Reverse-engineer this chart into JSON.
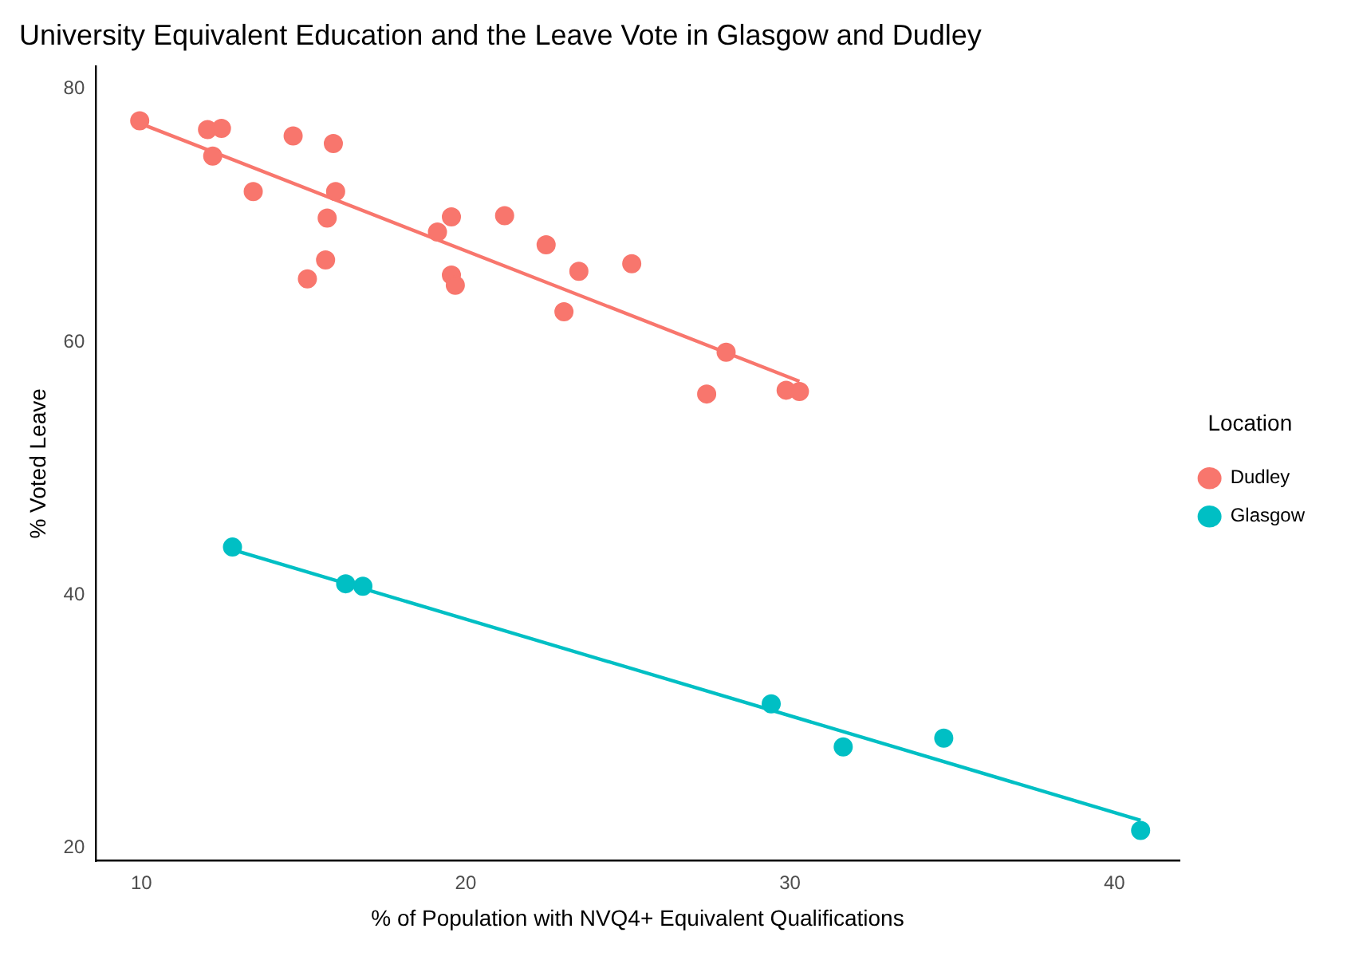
{
  "chart_data": {
    "type": "scatter",
    "title": "University Equivalent Education and the Leave Vote in Glasgow and Dudley",
    "xlabel": "% of Population with NVQ4+ Equivalent Qualifications",
    "ylabel": "% Voted Leave",
    "legend_title": "Location",
    "legend": "right",
    "grid": false,
    "marker": "circle",
    "xlim": [
      8.6,
      42
    ],
    "ylim": [
      19,
      81.8
    ],
    "xticks": [
      10,
      20,
      30,
      40
    ],
    "yticks": [
      20,
      40,
      60,
      80
    ],
    "series": [
      {
        "name": "Dudley",
        "color": "#f8766d",
        "x": [
          9.95,
          12.04,
          12.47,
          14.68,
          15.92,
          12.2,
          13.45,
          15.99,
          15.73,
          19.56,
          19.13,
          21.2,
          15.68,
          15.12,
          19.56,
          19.68,
          22.48,
          23.49,
          25.12,
          23.03,
          28.03,
          27.43,
          29.88,
          30.29
        ],
        "values": [
          77.5,
          76.8,
          76.9,
          76.3,
          75.7,
          74.7,
          71.9,
          71.9,
          69.8,
          69.9,
          68.7,
          70.0,
          66.5,
          65.0,
          65.3,
          64.5,
          67.7,
          65.6,
          66.2,
          62.4,
          59.2,
          55.9,
          56.2,
          56.1
        ]
      },
      {
        "name": "Glasgow",
        "color": "#00bfc4",
        "x": [
          12.81,
          16.3,
          16.83,
          29.42,
          31.64,
          34.74,
          40.81
        ],
        "values": [
          43.8,
          40.9,
          40.7,
          31.4,
          28.0,
          28.7,
          21.4
        ]
      },
      {
        "type": "line",
        "color": "#f8766d",
        "marker": "none",
        "x": [
          9.95,
          30.29
        ],
        "values": [
          77.3,
          56.9
        ]
      },
      {
        "type": "line",
        "color": "#00bfc4",
        "marker": "none",
        "x": [
          12.81,
          40.81
        ],
        "values": [
          43.6,
          22.2
        ]
      }
    ]
  }
}
